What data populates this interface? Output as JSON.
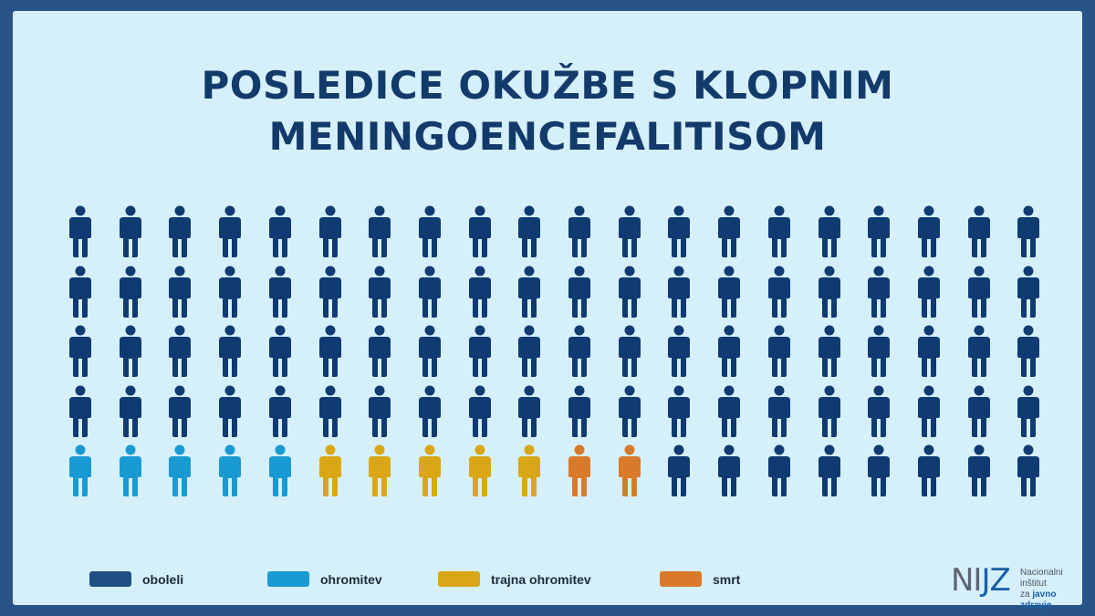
{
  "title_lines": [
    "POSLEDICE OKUŽBE S KLOPNIM",
    "MENINGOENCEFALITISOM"
  ],
  "colors": {
    "background_border": "#285487",
    "panel": "#d6f0fb",
    "title": "#123a6b"
  },
  "chart_data": {
    "type": "pictogram",
    "total": 100,
    "grid": {
      "rows": 5,
      "cols": 20
    },
    "categories": [
      {
        "key": "oboleli",
        "label": "oboleli",
        "color": "#0f3a72"
      },
      {
        "key": "ohromitev",
        "label": "ohromitev",
        "color": "#1a9ad2"
      },
      {
        "key": "trajna",
        "label": "trajna ohromitev",
        "color": "#d9a716"
      },
      {
        "key": "smrt",
        "label": "smrt",
        "color": "#d97a2b"
      }
    ],
    "values": {
      "oboleli": 88,
      "ohromitev": 5,
      "trajna": 5,
      "smrt": 2
    },
    "row_pattern": [
      [
        "oboleli",
        20
      ],
      [
        "oboleli",
        20
      ],
      [
        "oboleli",
        20
      ],
      [
        "oboleli",
        20
      ],
      [
        "ohromitev",
        5,
        "trajna",
        5,
        "smrt",
        2,
        "oboleli",
        8
      ]
    ],
    "legend_position": "bottom"
  },
  "legend": [
    {
      "label": "oboleli",
      "color": "#1f4f85"
    },
    {
      "label": "ohromitev",
      "color": "#1a9ad2"
    },
    {
      "label": "trajna ohromitev",
      "color": "#d9a716"
    },
    {
      "label": "smrt",
      "color": "#d97a2b"
    }
  ],
  "logo": {
    "mark_ni": "NI",
    "mark_jz": "JZ",
    "line1": "Nacionalni inštitut",
    "line2_a": "za ",
    "line2_b": "javno zdravje"
  }
}
